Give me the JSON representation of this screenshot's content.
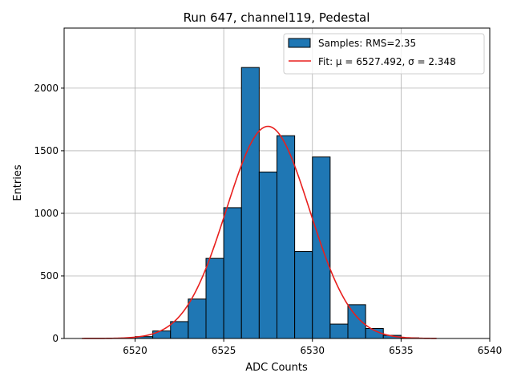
{
  "chart_data": {
    "type": "bar",
    "title": "Run 647, channel119, Pedestal",
    "xlabel": "ADC Counts",
    "ylabel": "Entries",
    "xlim": [
      6516,
      6540
    ],
    "ylim": [
      0,
      2480
    ],
    "grid": true,
    "xticks": [
      6520,
      6525,
      6530,
      6535,
      6540
    ],
    "yticks": [
      0,
      500,
      1000,
      1500,
      2000
    ],
    "histogram": {
      "name": "Samples: RMS=2.35",
      "bin_width": 1,
      "bin_edges_start": [
        6520,
        6521,
        6522,
        6523,
        6524,
        6525,
        6526,
        6527,
        6528,
        6529,
        6530,
        6531,
        6532,
        6533,
        6534,
        6535
      ],
      "counts": [
        15,
        60,
        135,
        315,
        640,
        1045,
        2165,
        1330,
        1620,
        695,
        1450,
        115,
        270,
        80,
        25,
        5
      ],
      "color": "#1f77b4",
      "edgecolor": "#000000"
    },
    "fit": {
      "name": "Fit: μ = 6527.492, σ = 2.348",
      "mu": 6527.492,
      "sigma": 2.348,
      "amplitude": 1695,
      "x_range": [
        6517,
        6537
      ],
      "color": "#e8201e"
    },
    "legend_position": "top-right"
  }
}
